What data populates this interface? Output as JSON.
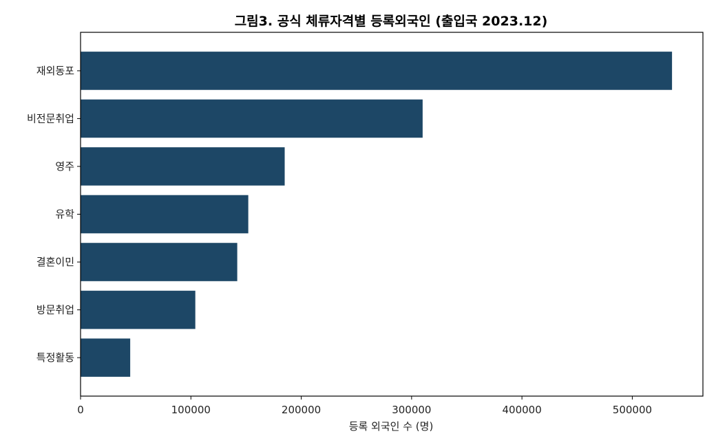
{
  "chart_data": {
    "type": "bar",
    "orientation": "horizontal",
    "title": "그림3. 공식 체류자격별 등록외국인 (출입국 2023.12)",
    "xlabel": "등록 외국인 수 (명)",
    "ylabel": "",
    "categories": [
      "재외동포",
      "비전문취업",
      "영주",
      "유학",
      "결혼이민",
      "방문취업",
      "특정활동"
    ],
    "values": [
      536000,
      310000,
      185000,
      152000,
      142000,
      104000,
      45000
    ],
    "xlim": [
      0,
      564000
    ],
    "xticks": [
      0,
      100000,
      200000,
      300000,
      400000,
      500000
    ],
    "xtick_labels": [
      "0",
      "100000",
      "200000",
      "300000",
      "400000",
      "500000"
    ],
    "grid": false,
    "colors": {
      "bar": "#1d4766",
      "axis": "#000000"
    }
  }
}
